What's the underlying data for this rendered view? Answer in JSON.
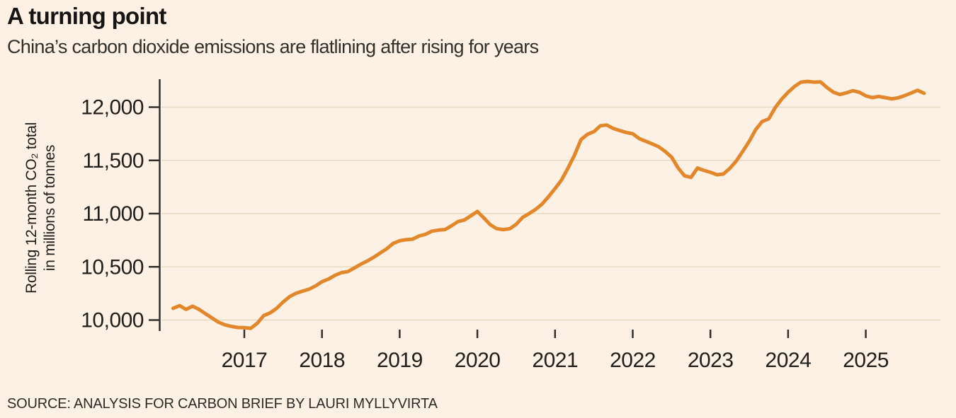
{
  "header": {
    "title": "A turning point",
    "subtitle": "China’s carbon dioxide emissions are flatlining after rising for years"
  },
  "footer": {
    "source": "SOURCE: ANALYSIS FOR CARBON BRIEF BY LAURI MYLLYVIRTA"
  },
  "colors": {
    "background": "#FCF1E4",
    "line": "#E2872B",
    "axis": "#33302B",
    "gridline": "#E7DAC4",
    "text": "#211E1B"
  },
  "chart_data": {
    "type": "line",
    "title": "A turning point",
    "subtitle": "China’s carbon dioxide emissions are flatlining after rising for years",
    "ylabel_line1": "Rolling 12-month CO₂ total",
    "ylabel_line2": "in millions of tonnes",
    "source": "SOURCE: ANALYSIS FOR CARBON BRIEF BY LAURI MYLLYVIRTA",
    "grid": "horizontal",
    "legend": "none",
    "ylim": [
      9880,
      12270
    ],
    "xlim": [
      2015.95,
      2026.05
    ],
    "y_ticks": [
      {
        "value": 10000,
        "label": "10,000"
      },
      {
        "value": 10500,
        "label": "10,500"
      },
      {
        "value": 11000,
        "label": "11,000"
      },
      {
        "value": 11500,
        "label": "11,500"
      },
      {
        "value": 12000,
        "label": "12,000"
      }
    ],
    "x_ticks": [
      {
        "value": 2017,
        "label": "2017"
      },
      {
        "value": 2018,
        "label": "2018"
      },
      {
        "value": 2019,
        "label": "2019"
      },
      {
        "value": 2020,
        "label": "2020"
      },
      {
        "value": 2021,
        "label": "2021"
      },
      {
        "value": 2022,
        "label": "2022"
      },
      {
        "value": 2023,
        "label": "2023"
      },
      {
        "value": 2024,
        "label": "2024"
      },
      {
        "value": 2025,
        "label": "2025"
      }
    ],
    "series": [
      {
        "name": "China rolling 12-month CO2 emissions, millions of tonnes",
        "frequency": "monthly",
        "start_year": 2016,
        "start_month": 2,
        "values": [
          10110,
          10135,
          10100,
          10130,
          10100,
          10060,
          10020,
          9980,
          9955,
          9940,
          9930,
          9928,
          9922,
          9970,
          10042,
          10068,
          10110,
          10170,
          10220,
          10252,
          10272,
          10290,
          10320,
          10360,
          10385,
          10420,
          10445,
          10455,
          10490,
          10525,
          10555,
          10590,
          10630,
          10670,
          10720,
          10745,
          10755,
          10760,
          10790,
          10805,
          10835,
          10845,
          10850,
          10885,
          10925,
          10940,
          10980,
          11020,
          10960,
          10895,
          10858,
          10850,
          10858,
          10900,
          10965,
          11000,
          11040,
          11090,
          11160,
          11235,
          11315,
          11428,
          11548,
          11695,
          11745,
          11770,
          11825,
          11832,
          11800,
          11780,
          11762,
          11750,
          11705,
          11680,
          11655,
          11628,
          11585,
          11530,
          11430,
          11355,
          11340,
          11428,
          11405,
          11388,
          11365,
          11372,
          11425,
          11495,
          11585,
          11680,
          11790,
          11865,
          11890,
          11995,
          12075,
          12140,
          12195,
          12235,
          12242,
          12235,
          12238,
          12185,
          12140,
          12118,
          12135,
          12155,
          12140,
          12106,
          12090,
          12100,
          12090,
          12078,
          12088,
          12108,
          12132,
          12158,
          12130
        ]
      }
    ]
  }
}
